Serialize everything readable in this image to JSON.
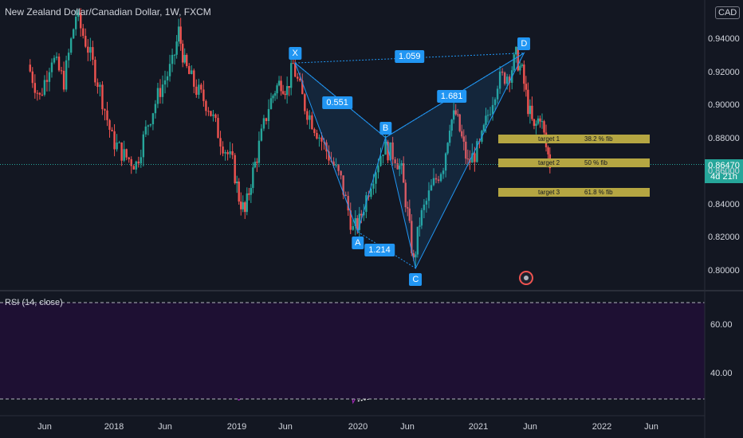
{
  "header": {
    "title": "New Zealand Dollar/Canadian Dollar, 1W, FXCM",
    "currency_badge": "CAD"
  },
  "price_tag": {
    "price": "0.86470",
    "countdown": "4d 21h"
  },
  "rsi": {
    "label": "RSI (14, close)"
  },
  "colors": {
    "up": "#26a69a",
    "down": "#ef5350",
    "pattern": "#2196f3",
    "rsi_line": "#9c27b0",
    "target": "#b5a642"
  },
  "chart_data": {
    "type": "candlestick",
    "title": "New Zealand Dollar/Canadian Dollar, 1W, FXCM",
    "y_ticks": [
      "0.80000",
      "0.82000",
      "0.84000",
      "0.86000",
      "0.88000",
      "0.90000",
      "0.92000",
      "0.94000"
    ],
    "y_ticks_display": [
      "0.80000",
      "0.82000",
      "0.84000",
      "0.86000",
      "0.88000",
      "0.90000",
      "0.92000",
      "0.94000"
    ],
    "x_ticks": [
      "Jun",
      "2018",
      "Jun",
      "2019",
      "Jun",
      "2020",
      "Jun",
      "2021",
      "Jun",
      "2022",
      "Jun"
    ],
    "price_path": [
      [
        2017.05,
        0.925
      ],
      [
        2017.15,
        0.905
      ],
      [
        2017.25,
        0.93
      ],
      [
        2017.35,
        0.915
      ],
      [
        2017.45,
        0.955
      ],
      [
        2017.55,
        0.935
      ],
      [
        2017.65,
        0.91
      ],
      [
        2017.75,
        0.88
      ],
      [
        2017.85,
        0.87
      ],
      [
        2017.95,
        0.865
      ],
      [
        2018.05,
        0.89
      ],
      [
        2018.15,
        0.91
      ],
      [
        2018.25,
        0.925
      ],
      [
        2018.3,
        0.945
      ],
      [
        2018.35,
        0.925
      ],
      [
        2018.45,
        0.91
      ],
      [
        2018.55,
        0.9
      ],
      [
        2018.65,
        0.88
      ],
      [
        2018.75,
        0.865
      ],
      [
        2018.8,
        0.845
      ],
      [
        2018.85,
        0.835
      ],
      [
        2018.9,
        0.855
      ],
      [
        2018.95,
        0.87
      ],
      [
        2019.05,
        0.9
      ],
      [
        2019.1,
        0.91
      ],
      [
        2019.15,
        0.915
      ],
      [
        2019.2,
        0.91
      ],
      [
        2019.25,
        0.925
      ],
      [
        2019.35,
        0.9
      ],
      [
        2019.45,
        0.885
      ],
      [
        2019.55,
        0.87
      ],
      [
        2019.65,
        0.855
      ],
      [
        2019.75,
        0.825
      ],
      [
        2019.8,
        0.83
      ],
      [
        2019.9,
        0.855
      ],
      [
        2020.0,
        0.875
      ],
      [
        2020.1,
        0.87
      ],
      [
        2020.15,
        0.86
      ],
      [
        2020.2,
        0.835
      ],
      [
        2020.25,
        0.805
      ],
      [
        2020.3,
        0.83
      ],
      [
        2020.4,
        0.85
      ],
      [
        2020.5,
        0.865
      ],
      [
        2020.55,
        0.89
      ],
      [
        2020.6,
        0.895
      ],
      [
        2020.65,
        0.88
      ],
      [
        2020.7,
        0.865
      ],
      [
        2020.8,
        0.875
      ],
      [
        2020.85,
        0.89
      ],
      [
        2020.95,
        0.915
      ],
      [
        2021.05,
        0.92
      ],
      [
        2021.1,
        0.93
      ],
      [
        2021.15,
        0.92
      ],
      [
        2021.2,
        0.9
      ],
      [
        2021.25,
        0.885
      ],
      [
        2021.3,
        0.895
      ],
      [
        2021.35,
        0.875
      ],
      [
        2021.38,
        0.865
      ]
    ],
    "harmonic_pattern": {
      "points": [
        {
          "name": "X",
          "x": 2019.25,
          "y": 0.926
        },
        {
          "name": "A",
          "x": 2019.77,
          "y": 0.824
        },
        {
          "name": "B",
          "x": 2020.0,
          "y": 0.881
        },
        {
          "name": "C",
          "x": 2020.25,
          "y": 0.802
        },
        {
          "name": "D",
          "x": 2021.15,
          "y": 0.932
        }
      ],
      "ratios": [
        {
          "label": "0.551",
          "x": 2019.6,
          "y": 0.902
        },
        {
          "label": "1.059",
          "x": 2020.2,
          "y": 0.93
        },
        {
          "label": "1.681",
          "x": 2020.55,
          "y": 0.906
        },
        {
          "label": "1.214",
          "x": 2019.95,
          "y": 0.813
        }
      ]
    },
    "targets": [
      {
        "name": "target 1",
        "fib": "38.2 % fib",
        "price": 0.8805
      },
      {
        "name": "target 2",
        "fib": "50 % fib",
        "price": 0.866
      },
      {
        "name": "target 3",
        "fib": "61.8 % fib",
        "price": 0.848
      }
    ],
    "current_price": 0.8647,
    "rsi": {
      "label": "RSI (14, close)",
      "y_ticks": [
        "40.00",
        "60.00"
      ],
      "path": [
        [
          2017.05,
          55
        ],
        [
          2017.15,
          45
        ],
        [
          2017.2,
          52
        ],
        [
          2017.3,
          40
        ],
        [
          2017.35,
          48
        ],
        [
          2017.45,
          58
        ],
        [
          2017.55,
          50
        ],
        [
          2017.6,
          38
        ],
        [
          2017.7,
          45
        ],
        [
          2017.8,
          35
        ],
        [
          2017.9,
          40
        ],
        [
          2018.0,
          48
        ],
        [
          2018.05,
          55
        ],
        [
          2018.1,
          63
        ],
        [
          2018.2,
          68
        ],
        [
          2018.25,
          60
        ],
        [
          2018.35,
          50
        ],
        [
          2018.45,
          55
        ],
        [
          2018.55,
          45
        ],
        [
          2018.65,
          40
        ],
        [
          2018.75,
          35
        ],
        [
          2018.8,
          30
        ],
        [
          2018.9,
          40
        ],
        [
          2019.0,
          50
        ],
        [
          2019.1,
          58
        ],
        [
          2019.2,
          62
        ],
        [
          2019.25,
          56
        ],
        [
          2019.35,
          48
        ],
        [
          2019.45,
          45
        ],
        [
          2019.55,
          40
        ],
        [
          2019.65,
          35
        ],
        [
          2019.75,
          30
        ],
        [
          2019.85,
          36
        ],
        [
          2019.95,
          45
        ],
        [
          2020.05,
          50
        ],
        [
          2020.15,
          42
        ],
        [
          2020.25,
          35
        ],
        [
          2020.35,
          45
        ],
        [
          2020.45,
          55
        ],
        [
          2020.55,
          62
        ],
        [
          2020.65,
          55
        ],
        [
          2020.75,
          58
        ],
        [
          2020.85,
          60
        ],
        [
          2020.95,
          65
        ],
        [
          2021.05,
          63
        ],
        [
          2021.15,
          64
        ],
        [
          2021.2,
          48
        ],
        [
          2021.25,
          42
        ],
        [
          2021.3,
          45
        ],
        [
          2021.35,
          38
        ]
      ],
      "divergence": [
        [
          2019.77,
          29
        ],
        [
          2020.25,
          33.5
        ]
      ]
    }
  }
}
